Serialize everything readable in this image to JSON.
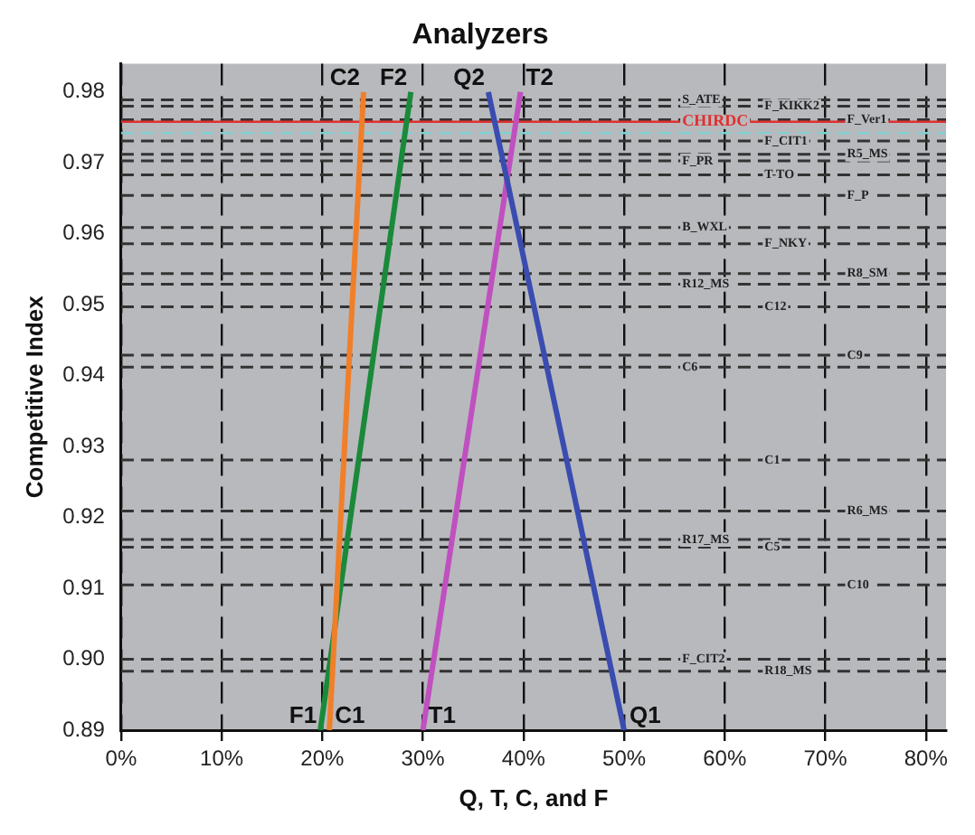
{
  "chart_data": {
    "type": "line",
    "title": "Analyzers",
    "xlabel": "Q, T, C, and F",
    "ylabel": "Competitive Index",
    "series": [
      {
        "color": "#3a4cb0",
        "x": [
          36.5,
          50
        ],
        "values": [
          0.98,
          0.89
        ]
      },
      {
        "color": "#c050c0",
        "x": [
          30,
          39.7
        ],
        "values": [
          0.89,
          0.98
        ]
      },
      {
        "color": "#f07f2a",
        "x": [
          20.7,
          24.1
        ],
        "values": [
          0.89,
          0.98
        ]
      },
      {
        "color": "#1a8a3a",
        "x": [
          19.8,
          28.8
        ],
        "values": [
          0.89,
          0.98
        ]
      }
    ],
    "xlim": [
      0,
      82
    ],
    "xticks": [
      {
        "value": 0,
        "label": "0%"
      },
      {
        "value": 10,
        "label": "10%"
      },
      {
        "value": 20,
        "label": "20%"
      },
      {
        "value": 30,
        "label": "30%"
      },
      {
        "value": 40,
        "label": "40%"
      },
      {
        "value": 50,
        "label": "50%"
      },
      {
        "value": 60,
        "label": "60%"
      },
      {
        "value": 70,
        "label": "70%"
      },
      {
        "value": 80,
        "label": "80%"
      }
    ],
    "ylim": [
      0.89,
      0.984
    ],
    "yticks": [
      {
        "value": 0.89,
        "label": "0.89"
      },
      {
        "value": 0.9,
        "label": "0.90"
      },
      {
        "value": 0.91,
        "label": "0.91"
      },
      {
        "value": 0.92,
        "label": "0.92"
      },
      {
        "value": 0.93,
        "label": "0.93"
      },
      {
        "value": 0.94,
        "label": "0.94"
      },
      {
        "value": 0.95,
        "label": "0.95"
      },
      {
        "value": 0.96,
        "label": "0.96"
      },
      {
        "value": 0.97,
        "label": "0.97"
      },
      {
        "value": 0.98,
        "label": "0.98"
      }
    ],
    "grid": "x",
    "legend": false,
    "marker": "none",
    "line_style": "solid",
    "ref_lines": [
      {
        "axis": "y",
        "value": 0.9789,
        "label": "S_ATE"
      },
      {
        "axis": "y",
        "value": 0.978,
        "label": "F_KIKK2"
      },
      {
        "axis": "y",
        "value": 0.9761,
        "label": "F_Ver1"
      },
      {
        "axis": "y",
        "value": 0.9758,
        "label": "CHIRDC",
        "color": "#e03030",
        "line_style": "solid"
      },
      {
        "axis": "y",
        "value": 0.9742,
        "color": "#7fd0d0"
      },
      {
        "axis": "y",
        "value": 0.9731,
        "label": "F_CIT1"
      },
      {
        "axis": "y",
        "value": 0.9712,
        "label": "R5_MS"
      },
      {
        "axis": "y",
        "value": 0.9703,
        "label": "F_PR"
      },
      {
        "axis": "y",
        "value": 0.9683,
        "label": "T-TO"
      },
      {
        "axis": "y",
        "value": 0.9654,
        "label": "F_P"
      },
      {
        "axis": "y",
        "value": 0.9609,
        "label": "B_WXL"
      },
      {
        "axis": "y",
        "value": 0.9586,
        "label": "F_NKY"
      },
      {
        "axis": "y",
        "value": 0.9544,
        "label": "R8_SM"
      },
      {
        "axis": "y",
        "value": 0.9529,
        "label": "R12_MS"
      },
      {
        "axis": "y",
        "value": 0.9497,
        "label": "C12"
      },
      {
        "axis": "y",
        "value": 0.9429,
        "label": "C9"
      },
      {
        "axis": "y",
        "value": 0.9412,
        "label": "C6"
      },
      {
        "axis": "y",
        "value": 0.9281,
        "label": "C1"
      },
      {
        "axis": "y",
        "value": 0.9209,
        "label": "R6_MS"
      },
      {
        "axis": "y",
        "value": 0.9169,
        "label": "R17_MS"
      },
      {
        "axis": "y",
        "value": 0.9158,
        "label": "C5"
      },
      {
        "axis": "y",
        "value": 0.9105,
        "label": "C10"
      },
      {
        "axis": "y",
        "value": 0.9,
        "label": "F_CIT2"
      },
      {
        "axis": "y",
        "value": 0.8983,
        "label": "R18_MS"
      }
    ],
    "annotations": [
      {
        "text": "F1",
        "x": 19.8,
        "y": 0.89
      },
      {
        "text": "C1",
        "x": 20.7,
        "y": 0.89
      },
      {
        "text": "C2",
        "x": 24.1,
        "y": 0.98
      },
      {
        "text": "T1",
        "x": 30,
        "y": 0.89
      },
      {
        "text": "Q2",
        "x": 36.5,
        "y": 0.98
      },
      {
        "text": "Q1",
        "x": 50,
        "y": 0.89
      },
      {
        "text": "F2",
        "x": 28.8,
        "y": 0.98
      },
      {
        "text": "T2",
        "x": 39.7,
        "y": 0.98
      }
    ]
  }
}
